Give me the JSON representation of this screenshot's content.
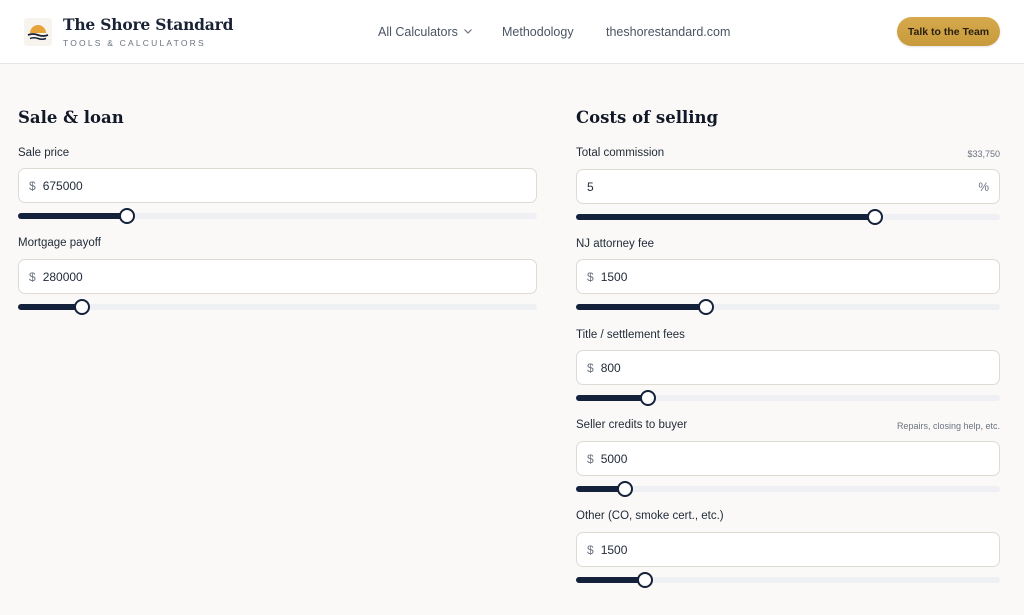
{
  "header": {
    "brand_title": "The Shore Standard",
    "brand_subtitle": "TOOLS & CALCULATORS",
    "nav": {
      "calculators": "All Calculators",
      "methodology": "Methodology",
      "site": "theshorestandard.com"
    },
    "cta_label": "Talk to the Team"
  },
  "sale_loan": {
    "title": "Sale & loan",
    "fields": [
      {
        "label": "Sale price",
        "prefix": "$",
        "value": "675000",
        "slider_fraction": 0.21
      },
      {
        "label": "Mortgage payoff",
        "prefix": "$",
        "value": "280000",
        "slider_fraction": 0.124
      }
    ]
  },
  "costs": {
    "title": "Costs of selling",
    "fields": [
      {
        "label": "Total commission",
        "hint": "$33,750",
        "value": "5",
        "suffix": "%",
        "slider_fraction": 0.706
      },
      {
        "label": "NJ attorney fee",
        "prefix": "$",
        "value": "1500",
        "slider_fraction": 0.306
      },
      {
        "label": "Title / settlement fees",
        "prefix": "$",
        "value": "800",
        "slider_fraction": 0.17
      },
      {
        "label": "Seller credits to buyer",
        "hint": "Repairs, closing help, etc.",
        "prefix": "$",
        "value": "5000",
        "slider_fraction": 0.115
      },
      {
        "label": "Other (CO, smoke cert., etc.)",
        "prefix": "$",
        "value": "1500",
        "slider_fraction": 0.162
      }
    ]
  },
  "colors": {
    "accent_gold": "#d6aa4c",
    "slider_navy": "#14213a",
    "background": "#faf9f7"
  },
  "icons": {
    "logo": "sunrise-over-water-icon",
    "nav_dropdown": "chevron-down-icon"
  }
}
